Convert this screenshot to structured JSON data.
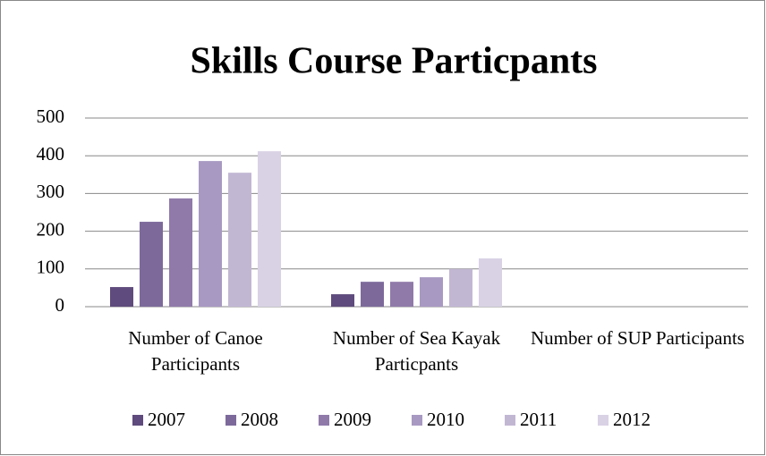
{
  "chart_data": {
    "type": "bar",
    "title": "Skills Course Particpants",
    "categories": [
      "Number of Canoe Participants",
      "Number of Sea Kayak Particpants",
      "Number of SUP Participants"
    ],
    "series": [
      {
        "name": "2007",
        "color": "#5f4b7d",
        "values": [
          52,
          33,
          0
        ]
      },
      {
        "name": "2008",
        "color": "#7d6a9b",
        "values": [
          225,
          66,
          0
        ]
      },
      {
        "name": "2009",
        "color": "#907aaa",
        "values": [
          287,
          66,
          0
        ]
      },
      {
        "name": "2010",
        "color": "#a899c2",
        "values": [
          386,
          78,
          0
        ]
      },
      {
        "name": "2011",
        "color": "#c2b7d3",
        "values": [
          355,
          100,
          0
        ]
      },
      {
        "name": "2012",
        "color": "#d9d2e5",
        "values": [
          412,
          128,
          0
        ]
      }
    ],
    "ylim": [
      0,
      500
    ],
    "yticks": [
      0,
      100,
      200,
      300,
      400,
      500
    ],
    "grid": true,
    "legend": "bottom"
  }
}
